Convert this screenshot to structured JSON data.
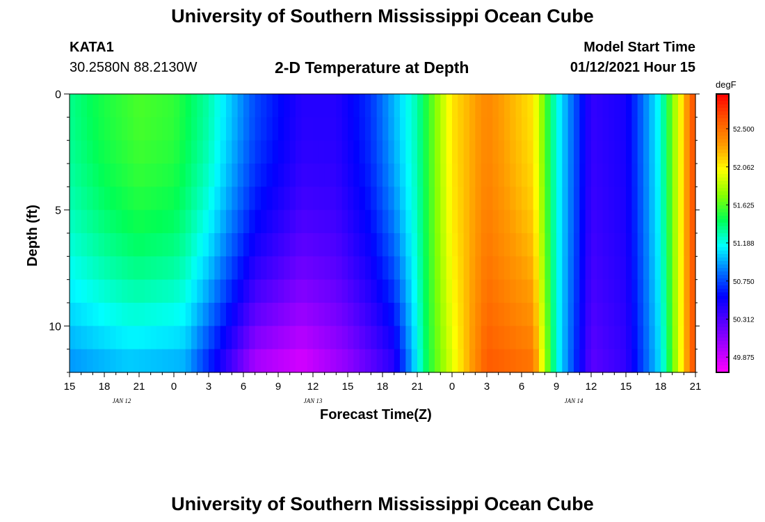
{
  "header": {
    "title": "University of Southern Mississippi Ocean Cube",
    "station": "KATA1",
    "coords": "30.2580N 88.2130W",
    "plot_title": "2-D Temperature at Depth",
    "model_label": "Model Start Time",
    "model_time": "01/12/2021 Hour 15"
  },
  "footer": {
    "title": "University of Southern Mississippi Ocean Cube"
  },
  "colors": {
    "colormap": [
      "#ff00ff",
      "#aa00ff",
      "#5500ff",
      "#0000ff",
      "#0077ff",
      "#00ffff",
      "#00ff55",
      "#88ff00",
      "#ffff00",
      "#ff9900",
      "#ff5500",
      "#ff0000"
    ]
  },
  "chart_data": {
    "type": "heatmap",
    "title": "2-D Temperature at Depth",
    "xlabel": "Forecast Time(Z)",
    "ylabel": "Depth (ft)",
    "x_range_hours": [
      0,
      54
    ],
    "ylim": [
      0,
      12
    ],
    "y_ticks": [
      "0",
      "5",
      "10"
    ],
    "x_ticks": [
      "15",
      "18",
      "21",
      "0",
      "3",
      "6",
      "9",
      "12",
      "15",
      "18",
      "21",
      "0",
      "3",
      "6",
      "9",
      "12",
      "15",
      "18",
      "21"
    ],
    "date_labels": [
      {
        "label": "JAN 12",
        "hour": 4.5
      },
      {
        "label": "JAN 13",
        "hour": 21
      },
      {
        "label": "JAN 14",
        "hour": 43.5
      }
    ],
    "colorbar": {
      "unit": "degF",
      "min": 49.7,
      "max": 52.9,
      "ticks": [
        "52.500",
        "52.062",
        "51.625",
        "51.188",
        "50.750",
        "50.312",
        "49.875"
      ]
    },
    "depth_levels_ft": [
      0,
      1,
      2,
      3,
      4,
      5,
      6,
      7,
      8,
      9,
      10,
      11,
      12
    ],
    "surface_temp_degF": [
      {
        "hour": 0,
        "value": 51.35
      },
      {
        "hour": 3,
        "value": 51.5
      },
      {
        "hour": 6,
        "value": 51.6
      },
      {
        "hour": 9,
        "value": 51.55
      },
      {
        "hour": 12,
        "value": 51.3
      },
      {
        "hour": 16,
        "value": 50.75
      },
      {
        "hour": 20,
        "value": 50.45
      },
      {
        "hour": 23,
        "value": 50.45
      },
      {
        "hour": 26,
        "value": 50.7
      },
      {
        "hour": 30,
        "value": 51.3
      },
      {
        "hour": 33,
        "value": 52.1
      },
      {
        "hour": 36,
        "value": 52.4
      },
      {
        "hour": 40,
        "value": 52.1
      },
      {
        "hour": 42,
        "value": 51.2
      },
      {
        "hour": 45,
        "value": 50.4
      },
      {
        "hour": 48,
        "value": 50.5
      },
      {
        "hour": 51,
        "value": 51.2
      },
      {
        "hour": 54,
        "value": 52.7
      }
    ],
    "bottom_temp_degF": [
      {
        "hour": 0,
        "value": 50.9
      },
      {
        "hour": 5,
        "value": 51.0
      },
      {
        "hour": 10,
        "value": 50.95
      },
      {
        "hour": 16,
        "value": 49.95
      },
      {
        "hour": 20,
        "value": 49.8
      },
      {
        "hour": 24,
        "value": 50.05
      },
      {
        "hour": 28,
        "value": 50.4
      },
      {
        "hour": 31,
        "value": 51.5
      },
      {
        "hour": 36,
        "value": 52.6
      },
      {
        "hour": 40,
        "value": 52.5
      },
      {
        "hour": 42,
        "value": 51.2
      },
      {
        "hour": 45,
        "value": 50.25
      },
      {
        "hour": 48,
        "value": 50.4
      },
      {
        "hour": 51,
        "value": 51.1
      },
      {
        "hour": 54,
        "value": 52.7
      }
    ]
  }
}
